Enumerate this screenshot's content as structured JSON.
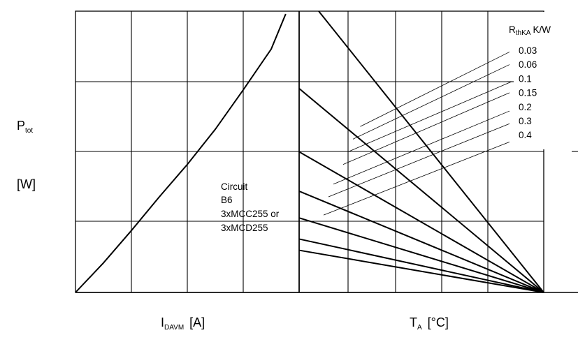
{
  "chart_data": {
    "type": "line",
    "title": "",
    "y_axis": {
      "label_main": "P",
      "label_sub": "tot",
      "unit": "[W]",
      "tick_labels": []
    },
    "left_panel": {
      "xlabel_main": "I",
      "xlabel_sub": "DAVM",
      "xlabel_unit": "[A]",
      "tick_labels": [],
      "series": [
        {
          "name": "",
          "points": [
            [
              0,
              0
            ],
            [
              0.125,
              0.21
            ],
            [
              0.25,
              0.44
            ],
            [
              0.375,
              0.68
            ],
            [
              0.5,
              0.91
            ],
            [
              0.625,
              1.16
            ],
            [
              0.75,
              1.44
            ],
            [
              0.875,
              1.73
            ],
            [
              0.94,
              1.98
            ]
          ]
        }
      ],
      "annotation": [
        "Circuit",
        "B6",
        "3xMCC255 or",
        "3xMCD255"
      ]
    },
    "right_panel": {
      "xlabel_main": "T",
      "xlabel_sub": "A",
      "xlabel_unit": "[°C]",
      "tick_labels": [],
      "legend_title_main": "R",
      "legend_title_sub": "thKA",
      "legend_title_unit": "K/W",
      "convergence_point": [
        1.0,
        0
      ],
      "series": [
        {
          "name": "0.03",
          "start": [
            0.08,
            2.0
          ]
        },
        {
          "name": "0.06",
          "start": [
            0.0,
            1.45
          ]
        },
        {
          "name": "0.1",
          "start": [
            0.0,
            1.0
          ]
        },
        {
          "name": "0.15",
          "start": [
            0.0,
            0.72
          ]
        },
        {
          "name": "0.2",
          "start": [
            0.0,
            0.53
          ]
        },
        {
          "name": "0.3",
          "start": [
            0.0,
            0.38
          ]
        },
        {
          "name": "0.4",
          "start": [
            0.0,
            0.3
          ]
        }
      ],
      "guide_lines": [
        {
          "from": [
            0.25,
            1.18
          ],
          "to": [
            0.86,
            1.71
          ]
        },
        {
          "from": [
            0.22,
            1.09
          ],
          "to": [
            0.86,
            1.62
          ]
        },
        {
          "from": [
            0.2,
            1.0
          ],
          "to": [
            0.87,
            1.5
          ]
        },
        {
          "from": [
            0.18,
            0.91
          ],
          "to": [
            0.86,
            1.42
          ]
        },
        {
          "from": [
            0.14,
            0.77
          ],
          "to": [
            0.86,
            1.29
          ]
        },
        {
          "from": [
            0.12,
            0.68
          ],
          "to": [
            0.86,
            1.2
          ]
        },
        {
          "from": [
            0.1,
            0.55
          ],
          "to": [
            0.86,
            1.07
          ]
        }
      ]
    },
    "grid": true,
    "y_range": [
      0,
      2.0
    ]
  }
}
